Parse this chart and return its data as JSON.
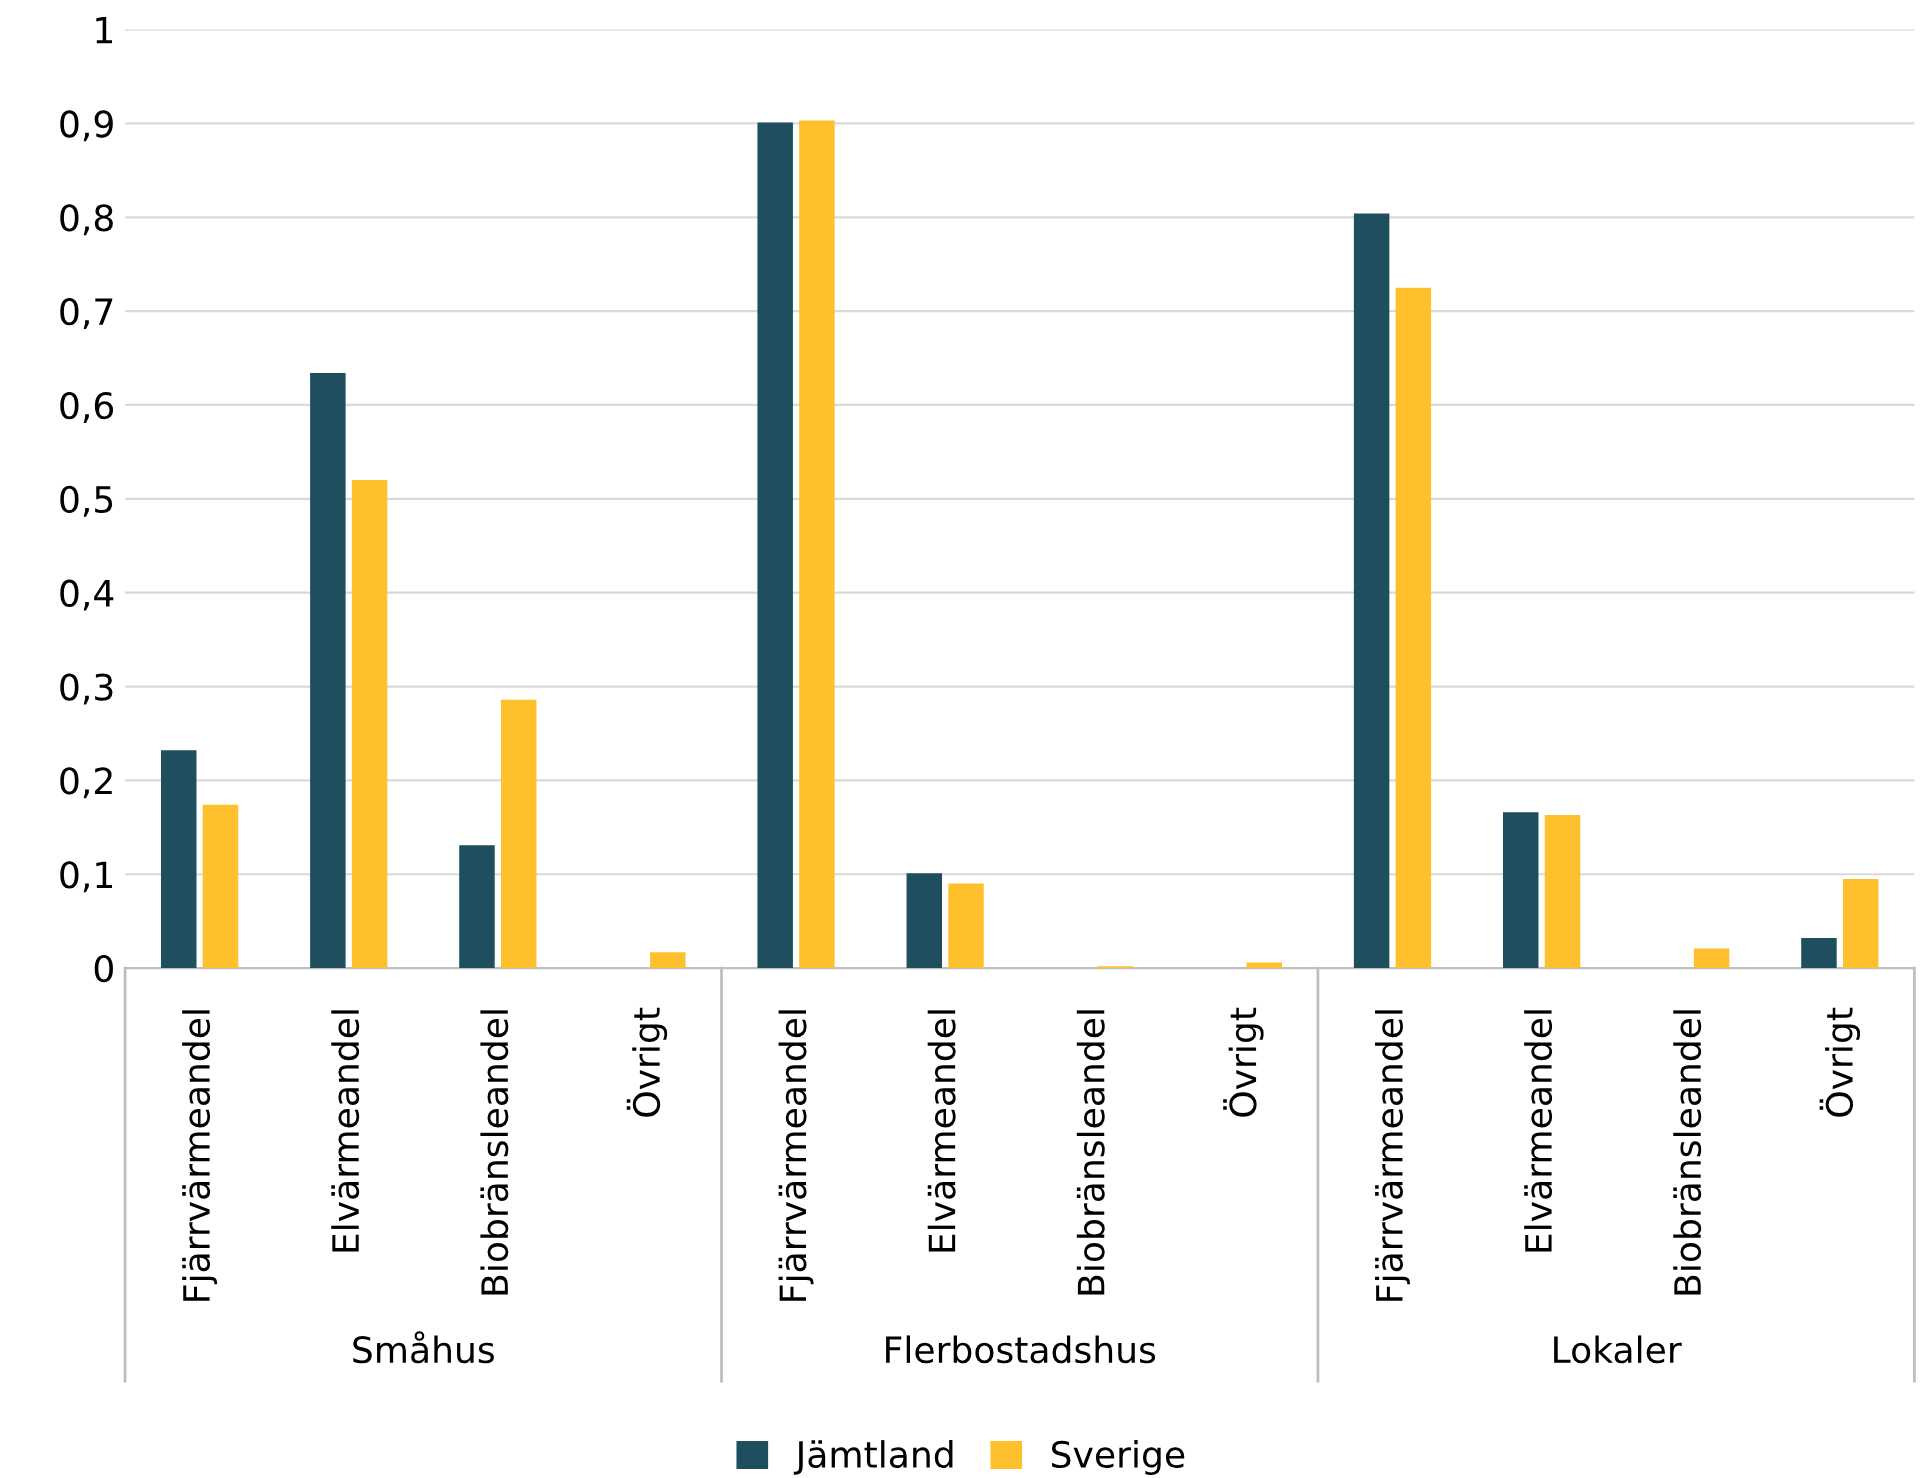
{
  "chart_data": {
    "type": "bar",
    "categories": [
      "Fjärrvärmeandel",
      "Elvärmeandel",
      "Biobränsleandel",
      "Övrigt",
      "Fjärrvärmeandel",
      "Elvärmeandel",
      "Biobränsleandel",
      "Övrigt",
      "Fjärrvärmeandel",
      "Elvärmeandel",
      "Biobränsleandel",
      "Övrigt"
    ],
    "series": [
      {
        "name": "Jämtland",
        "color": "#1f4e5f",
        "values": [
          0.232,
          0.634,
          0.131,
          0,
          0.901,
          0.101,
          0,
          0,
          0.804,
          0.166,
          0,
          0.032
        ]
      },
      {
        "name": "Sverige",
        "color": "#ffc02e",
        "values": [
          0.174,
          0.52,
          0.286,
          0.017,
          0.903,
          0.09,
          0.002,
          0.006,
          0.725,
          0.163,
          0.021,
          0.095
        ]
      }
    ],
    "annotations": [
      "Småhus",
      "Flerbostadshus",
      "Lokaler"
    ],
    "ylim": [
      0,
      1
    ],
    "yticks": [
      0,
      {
        "value": 0.1,
        "label": "0,1"
      },
      {
        "value": 0.2,
        "label": "0,2"
      },
      {
        "value": 0.3,
        "label": "0,3"
      },
      {
        "value": 0.4,
        "label": "0,4"
      },
      {
        "value": 0.5,
        "label": "0,5"
      },
      {
        "value": 0.6,
        "label": "0,6"
      },
      {
        "value": 0.7,
        "label": "0,7"
      },
      {
        "value": 0.8,
        "label": "0,8"
      },
      {
        "value": 0.9,
        "label": "0,9"
      },
      1
    ],
    "grid": "y",
    "legend": "bottom"
  }
}
